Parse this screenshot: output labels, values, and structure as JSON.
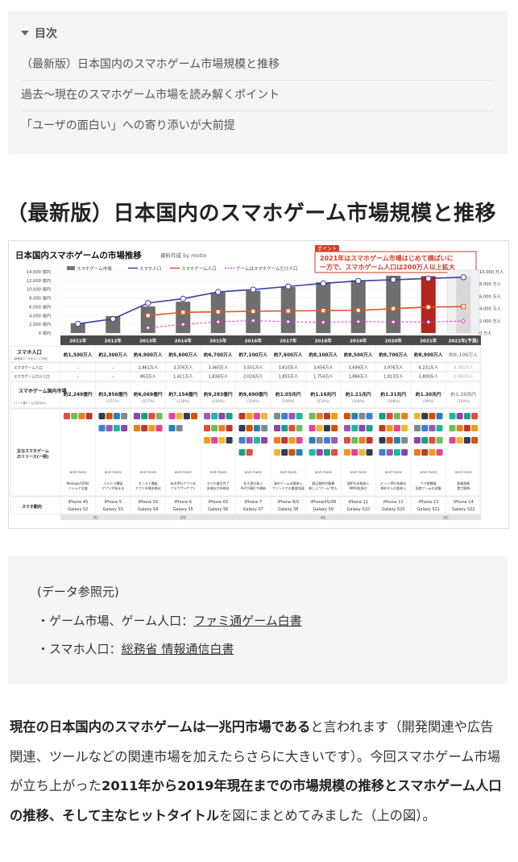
{
  "toc": {
    "title": "目次",
    "items": [
      "（最新版）日本国内のスマホゲーム市場規模と推移",
      "過去〜現在のスマホゲーム市場を読み解くポイント",
      "「ユーザの面白い」への寄り添いが大前提"
    ]
  },
  "section_title": "（最新版）日本国内のスマホゲーム市場規模と推移",
  "figure": {
    "title": "日本国内スマホゲームの市場推移",
    "credit": "資料作成 by motto",
    "point_badge": "ポイント",
    "callout_line1": "2021年はスマホゲーム市場はじめて横ばいに",
    "callout_line2": "一方で、スマホゲーム人口は200万人以上拡大",
    "legend": [
      "スマホゲーム市場",
      "スマホ人口",
      "スマホゲーム人口",
      "ゲームはスマホゲームだけ人口"
    ],
    "left_axis": [
      "14,000 億円",
      "12,000 億円",
      "10,000 億円",
      "8,000 億円",
      "6,000 億円",
      "4,000 億円",
      "2,000 億円",
      "0 億円"
    ],
    "right_axis": [
      "10,000 万人",
      "8,000 万人",
      "6,000 万人",
      "4,000 万人",
      "2,000 万人",
      "0 万人"
    ],
    "forecast_label": "予測",
    "years": [
      "2011年",
      "2012年",
      "2013年",
      "2014年",
      "2015年",
      "2016年",
      "2017年",
      "2018年",
      "2019年",
      "2020年",
      "2021年",
      "2022年(予測)"
    ],
    "row_labels": {
      "smartphone_pop": "スマホ人口",
      "smartphone_pop_note": "(総務省データをもとに作成)",
      "game_pop": "スマホゲーム人口",
      "game_only_pop": "スマホゲームだけ人口",
      "market": "スマホゲーム国内市場",
      "market_note": "(ファミ通ゲーム白書2022)",
      "releases": "主なスマホゲームのリリース(一例)",
      "devices": "スマホ動向"
    },
    "smartphone_pop": [
      "約1,500万人",
      "約2,300万人",
      "約4,900万人",
      "約5,600万人",
      "約6,700万人",
      "約7,100万人",
      "約7,600万人",
      "約8,100万人",
      "約8,500万人",
      "約8,700万人",
      "約8,900万人",
      "約9,100万人"
    ],
    "game_pop": [
      "–",
      "–",
      "2,861万人",
      "3,376万人",
      "3,460万人",
      "3,551万人",
      "3,610万人",
      "3,656万人",
      "3,699万人",
      "3,976万人",
      "4,231万人",
      "4,300万人"
    ],
    "game_only_pop": [
      "–",
      "–",
      "863万人",
      "1,411万人",
      "1,834万人",
      "2,024万人",
      "1,855万人",
      "1,754万人",
      "1,866万人",
      "1,813万人",
      "1,800万人",
      "1,950万人"
    ],
    "market": [
      "約2,249億円",
      "約3,856億円",
      "約6,069億円",
      "約7,154億円",
      "約9,283億円",
      "約9,690億円",
      "約1.05兆円",
      "約1.16兆円",
      "約1.21兆円",
      "約1.31兆円",
      "約1.30兆円",
      "約1.30兆円"
    ],
    "market_growth": [
      "",
      "(171%)",
      "(157%)",
      "(118%)",
      "(130%)",
      "(104%)",
      "(109%)",
      "(110%)",
      "(104%)",
      "(108%)",
      "(99%)",
      "(100%)"
    ],
    "and_more": "and more",
    "release_notes": [
      "Mobage/GREE ソシャゲ全盛",
      "パズドラ爆誕 アプリが始まる",
      "モンスト爆誕 アプリ市場本格化",
      "有名IPのアプリ化 ブラウザ→アプリ",
      "スマホ普及完了 多様化が本格化",
      "任天堂の参入 PvPが頭打ち開始",
      "海外ゲーム本格参入 ファンドでの重要加速",
      "超品質時代開幕 新しい\"ゲーム\"性も",
      "超IPの本格参入 MMO拡張の",
      "ヒットIPの多様化 海外からの超参入",
      "ウマ娘爆誕 国産ゲームの逆襲",
      "群雄割拠 実力勝負"
    ],
    "iphones": [
      "iPhone 4S",
      "iPhone 5",
      "iPhone 5S",
      "iPhone 6",
      "iPhone 6S",
      "iPhone 7",
      "iPhone 8/X",
      "iPhoneXS/XR",
      "iPhone 11",
      "iPhone 12",
      "iPhone 13",
      "iPhone 14"
    ],
    "galaxies": [
      "Galaxy S2",
      "Galaxy S3",
      "Galaxy S4",
      "Galaxy S5",
      "Galaxy S6",
      "Galaxy S7",
      "Galaxy S8",
      "Galaxy S9",
      "Galaxy S10",
      "Galaxy S20",
      "Galaxy S21",
      "Galaxy S22"
    ],
    "networks": [
      "3G",
      "LTE",
      "4G",
      "5G"
    ]
  },
  "chart_data": {
    "type": "bar",
    "categories": [
      "2011",
      "2012",
      "2013",
      "2014",
      "2015",
      "2016",
      "2017",
      "2018",
      "2019",
      "2020",
      "2021",
      "2022"
    ],
    "ylim": [
      0,
      14000
    ],
    "y2lim": [
      0,
      10000
    ],
    "series": [
      {
        "name": "スマホゲーム市場",
        "unit": "億円",
        "values": [
          2249,
          3856,
          6069,
          7154,
          9283,
          9690,
          10500,
          11600,
          12100,
          13100,
          13000,
          13000
        ]
      },
      {
        "name": "スマホ人口",
        "unit": "万人",
        "values": [
          1500,
          2300,
          4900,
          5600,
          6700,
          7100,
          7600,
          8100,
          8500,
          8700,
          8900,
          9100
        ]
      },
      {
        "name": "スマホゲーム人口",
        "unit": "万人",
        "values": [
          null,
          null,
          2861,
          3376,
          3460,
          3551,
          3610,
          3656,
          3699,
          3976,
          4231,
          4300
        ]
      },
      {
        "name": "ゲームはスマホゲームだけ人口",
        "unit": "万人",
        "values": [
          null,
          null,
          863,
          1411,
          1834,
          2024,
          1855,
          1754,
          1866,
          1813,
          1800,
          1950
        ]
      }
    ]
  },
  "sources": {
    "heading": "(データ参照元)",
    "line1_prefix": "・ゲーム市場、ゲーム人口：",
    "line1_link": "ファミ通ゲーム白書",
    "line2_prefix": "・スマホ人口：",
    "line2_link": "総務省 情報通信白書"
  },
  "body": {
    "p1_bold1": "現在の日本国内のスマホゲームは一兆円市場である",
    "p1_text1": "と言われます（開発関連や広告関連、ツールなどの関連市場を加えたらさらに大きいです）。今回スマホゲーム市場が立ち上がった",
    "p1_bold2": "2011年から2019年現在までの市場規模の推移とスマホゲーム人口の推移、そして主なヒットタイトル",
    "p1_text2": "を図にまとめてみました（上の図）。"
  }
}
